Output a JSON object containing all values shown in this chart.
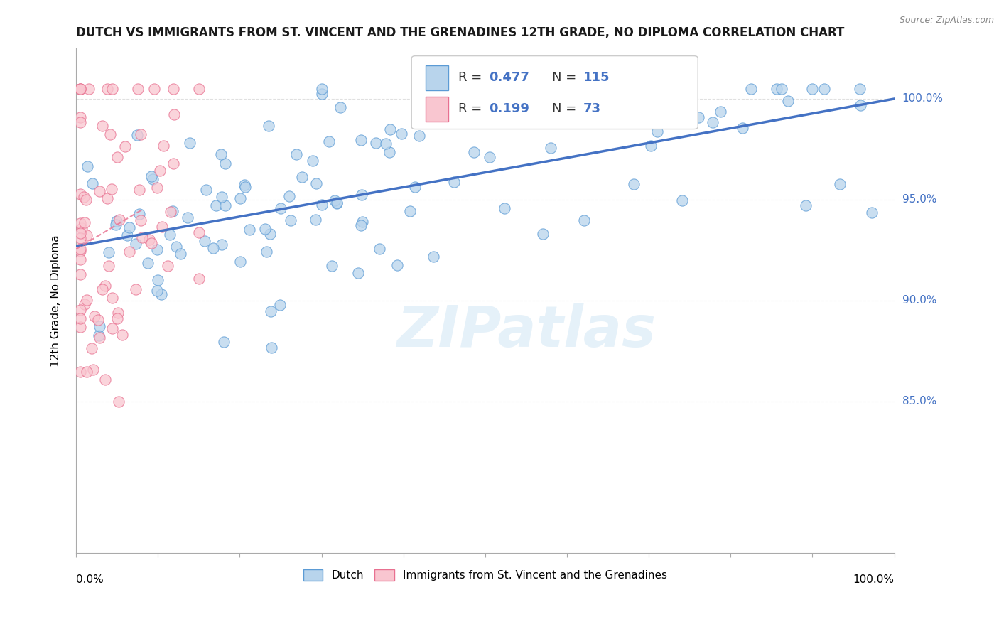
{
  "title": "DUTCH VS IMMIGRANTS FROM ST. VINCENT AND THE GRENADINES 12TH GRADE, NO DIPLOMA CORRELATION CHART",
  "source": "Source: ZipAtlas.com",
  "ylabel": "12th Grade, No Diploma",
  "yaxis_labels": [
    "100.0%",
    "95.0%",
    "90.0%",
    "85.0%"
  ],
  "yaxis_values": [
    1.0,
    0.95,
    0.9,
    0.85
  ],
  "xaxis_range": [
    0.0,
    1.0
  ],
  "yaxis_range": [
    0.775,
    1.025
  ],
  "dutch_R": 0.477,
  "dutch_N": 115,
  "svg_R": 0.199,
  "svg_N": 73,
  "dutch_color": "#b8d4ec",
  "dutch_edge_color": "#5b9bd5",
  "svg_color": "#f9c6d0",
  "svg_edge_color": "#e87090",
  "dutch_line_color": "#4472c4",
  "watermark_color": "#d5e8f5",
  "title_fontsize": 12,
  "axis_label_fontsize": 11,
  "background_color": "#ffffff",
  "grid_color": "#cccccc",
  "right_label_color": "#4472c4"
}
